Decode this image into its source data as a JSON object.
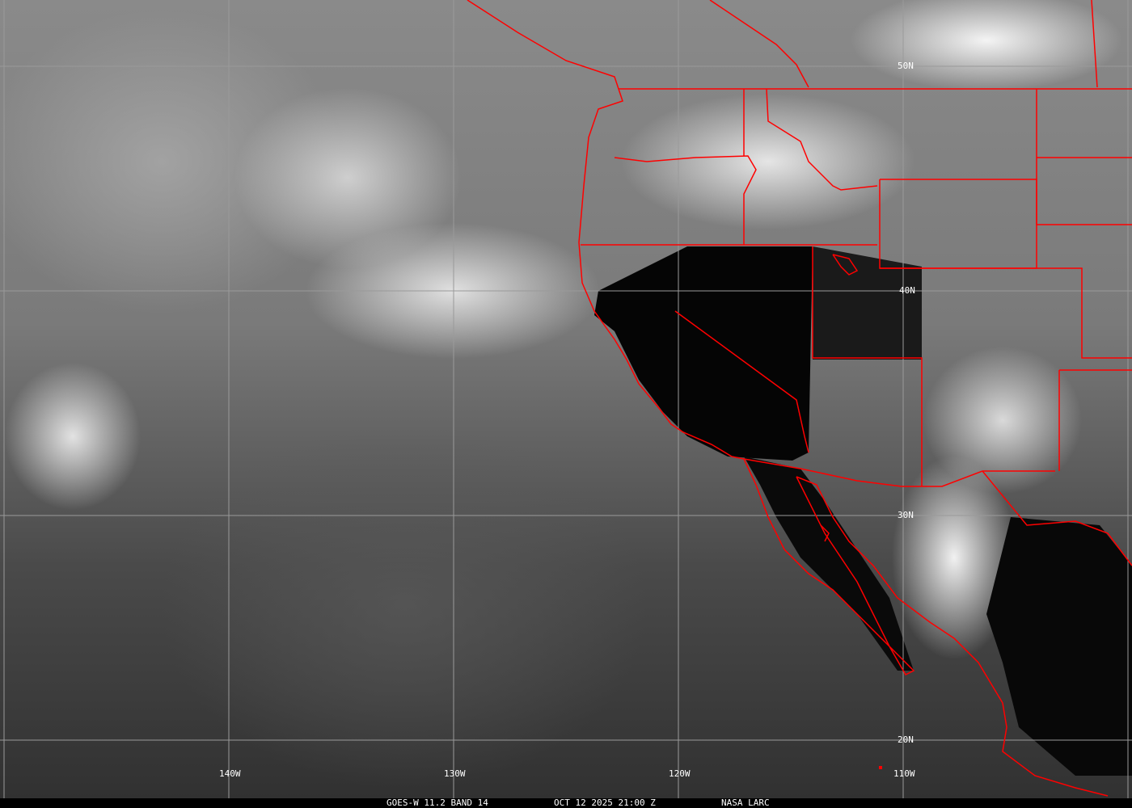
{
  "caption": {
    "satellite": "GOES-W 11.2 BAND 14",
    "datetime": "OCT 12 2025 21:00 Z",
    "source": "NASA LARC"
  },
  "grid": {
    "longitude_labels": [
      "140W",
      "130W",
      "120W",
      "110W"
    ],
    "latitude_labels": [
      "50N",
      "40N",
      "30N",
      "20N"
    ]
  },
  "colors": {
    "borders": "#ff0000",
    "grid": "#9a9a9a",
    "labels": "#ffffff"
  }
}
